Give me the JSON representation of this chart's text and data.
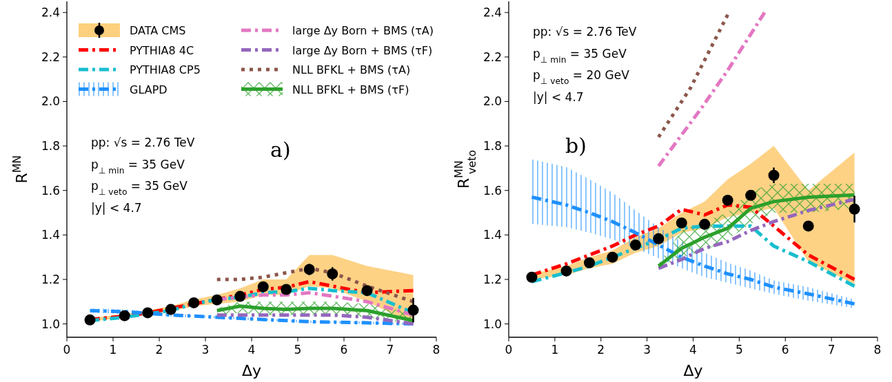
{
  "chart_data": [
    {
      "type": "line",
      "xlabel": "Δy",
      "ylabel": "R$^{MN}$",
      "xlim": [
        0,
        8
      ],
      "ylim": [
        0.94,
        2.45
      ],
      "xticks": [
        0,
        1,
        2,
        3,
        4,
        5,
        6,
        7,
        8
      ],
      "yticks": [
        {
          "value": 1,
          "label": "1.0"
        },
        {
          "value": 1.2,
          "label": "1.2"
        },
        {
          "value": 1.4,
          "label": "1.4"
        },
        {
          "value": 1.6,
          "label": "1.6"
        },
        {
          "value": 1.8,
          "label": "1.8"
        },
        {
          "value": 2,
          "label": "2.0"
        },
        {
          "value": 2.2,
          "label": "2.2"
        },
        {
          "value": 2.4,
          "label": "2.4"
        }
      ],
      "grid": false,
      "legend": "top left",
      "annotations": [
        "pp:  √s = 2.76 TeV",
        "p$_{⊥ min}$ = 35 GeV",
        "p$_{⊥ veto}$ = 35 GeV",
        "|y| < 4.7",
        "a)"
      ],
      "series": [
        {
          "name": "DATA CMS",
          "type": "scatter",
          "marker": "circle",
          "color": "#000000",
          "x": [
            0.5,
            1.25,
            1.75,
            2.25,
            2.75,
            3.25,
            3.75,
            4.25,
            4.75,
            5.25,
            5.75,
            6.5,
            7.5
          ],
          "values": [
            1.018,
            1.037,
            1.05,
            1.065,
            1.095,
            1.108,
            1.124,
            1.167,
            1.155,
            1.245,
            1.225,
            1.15,
            1.062
          ],
          "errors": [
            0.01,
            0.01,
            0.01,
            0.01,
            0.01,
            0.01,
            0.015,
            0.015,
            0.015,
            0.025,
            0.03,
            0.02,
            0.055
          ],
          "lower": [
            1.01,
            1.03,
            1.04,
            1.055,
            1.08,
            1.09,
            1.1,
            1.13,
            1.13,
            1.17,
            1.16,
            1.1,
            1.0
          ],
          "upper": [
            1.025,
            1.045,
            1.06,
            1.08,
            1.11,
            1.13,
            1.16,
            1.2,
            1.2,
            1.31,
            1.31,
            1.26,
            1.22
          ]
        },
        {
          "name": "PYTHIA8 4C",
          "type": "line",
          "line_style": "dashed",
          "color": "#ff0000",
          "x": [
            0.5,
            1.25,
            1.75,
            2.25,
            2.75,
            3.25,
            3.75,
            4.25,
            4.75,
            5.25,
            5.75,
            6.5,
            7.5
          ],
          "values": [
            1.02,
            1.035,
            1.05,
            1.07,
            1.09,
            1.11,
            1.13,
            1.155,
            1.165,
            1.19,
            1.17,
            1.14,
            1.15
          ]
        },
        {
          "name": "PYTHIA8 CP5",
          "type": "line",
          "line_style": "dashed",
          "color": "#17becf",
          "x": [
            0.5,
            1.25,
            1.75,
            2.25,
            2.75,
            3.25,
            3.75,
            4.25,
            4.75,
            5.25,
            5.75,
            6.5,
            7.5
          ],
          "values": [
            1.015,
            1.03,
            1.045,
            1.06,
            1.09,
            1.11,
            1.12,
            1.14,
            1.145,
            1.16,
            1.15,
            1.14,
            1.05
          ]
        },
        {
          "name": "GLAPD",
          "type": "line",
          "line_style": "dashed",
          "color": "#1e90ff",
          "x": [
            0.5,
            1.25,
            1.75,
            2.25,
            2.75,
            3.25,
            3.75,
            4.25,
            4.75,
            5.25,
            5.75,
            6.5,
            7.5
          ],
          "values": [
            1.06,
            1.055,
            1.048,
            1.04,
            1.035,
            1.03,
            1.025,
            1.02,
            1.015,
            1.01,
            1.008,
            1.005,
            1.0
          ],
          "lower": [
            1.05,
            1.045,
            1.04,
            1.033,
            1.03,
            1.025,
            1.02,
            1.015,
            1.01,
            1.005,
            1.003,
            1.0,
            0.995
          ],
          "upper": [
            1.07,
            1.065,
            1.056,
            1.047,
            1.04,
            1.035,
            1.03,
            1.025,
            1.02,
            1.015,
            1.013,
            1.01,
            1.005
          ]
        },
        {
          "name": "large Δy Born + BMS (τA)",
          "type": "line",
          "line_style": "dashed",
          "color": "#e377c2",
          "x": [
            3.25,
            3.75,
            4.25,
            4.75,
            5.25,
            5.75,
            6.5,
            7.5
          ],
          "values": [
            1.11,
            1.12,
            1.13,
            1.13,
            1.14,
            1.125,
            1.1,
            1.04
          ]
        },
        {
          "name": "large Δy Born + BMS (τF)",
          "type": "line",
          "line_style": "dashed",
          "color": "#9467bd",
          "x": [
            3.25,
            3.75,
            4.25,
            4.75,
            5.25,
            5.75,
            6.5,
            7.5
          ],
          "values": [
            1.04,
            1.04,
            1.04,
            1.04,
            1.04,
            1.04,
            1.03,
            1.0
          ]
        },
        {
          "name": "NLL BFKL  +  BMS (τA)",
          "type": "line",
          "line_style": "dotted",
          "color": "#8c564b",
          "x": [
            3.25,
            3.75,
            4.25,
            4.75,
            5.25,
            5.75,
            6.5,
            7.5
          ],
          "values": [
            1.2,
            1.2,
            1.21,
            1.23,
            1.25,
            1.23,
            1.17,
            1.1
          ]
        },
        {
          "name": "NLL BFKL  +  BMS (τF)",
          "type": "line",
          "line_style": "solid",
          "color": "#2ca02c",
          "x": [
            3.25,
            3.75,
            4.25,
            4.75,
            5.25,
            5.75,
            6.5,
            7.5
          ],
          "values": [
            1.06,
            1.08,
            1.07,
            1.065,
            1.07,
            1.07,
            1.06,
            1.015
          ],
          "lower": [
            1.04,
            1.05,
            1.04,
            1.04,
            1.04,
            1.04,
            1.03,
            1.0
          ],
          "upper": [
            1.07,
            1.1,
            1.1,
            1.1,
            1.1,
            1.1,
            1.09,
            1.05
          ]
        }
      ]
    },
    {
      "type": "line",
      "xlabel": "Δy",
      "ylabel": "R$^{MN}$$_{veto}$",
      "xlim": [
        0,
        8
      ],
      "ylim": [
        0.94,
        2.45
      ],
      "xticks": [
        0,
        1,
        2,
        3,
        4,
        5,
        6,
        7,
        8
      ],
      "yticks": [
        {
          "value": 1,
          "label": "1.0"
        },
        {
          "value": 1.2,
          "label": "1.2"
        },
        {
          "value": 1.4,
          "label": "1.4"
        },
        {
          "value": 1.6,
          "label": "1.6"
        },
        {
          "value": 1.8,
          "label": "1.8"
        },
        {
          "value": 2,
          "label": "2.0"
        },
        {
          "value": 2.2,
          "label": "2.2"
        },
        {
          "value": 2.4,
          "label": "2.4"
        }
      ],
      "grid": false,
      "annotations": [
        "pp:  √s = 2.76 TeV",
        "p$_{⊥ min}$ = 35 GeV",
        "p$_{⊥ veto}$ = 20 GeV",
        "|y| < 4.7",
        "b)"
      ],
      "series": [
        {
          "type": "scatter",
          "marker": "circle",
          "color": "#000000",
          "x": [
            0.5,
            1.25,
            1.75,
            2.25,
            2.75,
            3.25,
            3.75,
            4.25,
            4.75,
            5.25,
            5.75,
            6.5,
            7.5
          ],
          "values": [
            1.21,
            1.238,
            1.275,
            1.3,
            1.355,
            1.383,
            1.454,
            1.448,
            1.556,
            1.578,
            1.668,
            1.44,
            1.516
          ],
          "errors": [
            0.01,
            0.01,
            0.01,
            0.01,
            0.01,
            0.015,
            0.015,
            0.015,
            0.015,
            0.02,
            0.035,
            0.02,
            0.06
          ],
          "lower": [
            1.2,
            1.22,
            1.25,
            1.27,
            1.32,
            1.35,
            1.41,
            1.43,
            1.48,
            1.5,
            1.52,
            1.28,
            1.18
          ],
          "upper": [
            1.225,
            1.26,
            1.3,
            1.33,
            1.39,
            1.43,
            1.5,
            1.55,
            1.65,
            1.72,
            1.8,
            1.6,
            1.77
          ]
        },
        {
          "type": "line",
          "line_style": "dashed",
          "color": "#ff0000",
          "x": [
            0.5,
            1.25,
            1.75,
            2.25,
            2.75,
            3.25,
            3.75,
            4.25,
            4.75,
            5.25,
            5.75,
            6.5,
            7.5
          ],
          "values": [
            1.22,
            1.27,
            1.31,
            1.35,
            1.4,
            1.44,
            1.515,
            1.49,
            1.535,
            1.525,
            1.44,
            1.31,
            1.2
          ]
        },
        {
          "type": "line",
          "line_style": "dashed",
          "color": "#17becf",
          "x": [
            0.5,
            1.25,
            1.75,
            2.25,
            2.75,
            3.25,
            3.75,
            4.25,
            4.75,
            5.25,
            5.75,
            6.5,
            7.5
          ],
          "values": [
            1.19,
            1.23,
            1.26,
            1.3,
            1.34,
            1.38,
            1.43,
            1.44,
            1.44,
            1.44,
            1.35,
            1.28,
            1.17
          ]
        },
        {
          "type": "line",
          "line_style": "dashed",
          "color": "#1e90ff",
          "x": [
            0.5,
            1.25,
            1.75,
            2.25,
            2.75,
            3.25,
            3.75,
            4.25,
            4.75,
            5.25,
            5.75,
            6.5,
            7.5
          ],
          "values": [
            1.57,
            1.535,
            1.5,
            1.46,
            1.41,
            1.355,
            1.3,
            1.26,
            1.225,
            1.2,
            1.165,
            1.135,
            1.09
          ],
          "lower": [
            1.45,
            1.435,
            1.41,
            1.38,
            1.34,
            1.295,
            1.25,
            1.21,
            1.185,
            1.16,
            1.135,
            1.105,
            1.07
          ],
          "upper": [
            1.74,
            1.705,
            1.65,
            1.59,
            1.51,
            1.435,
            1.37,
            1.32,
            1.275,
            1.24,
            1.195,
            1.165,
            1.11
          ]
        },
        {
          "type": "line",
          "line_style": "dashed",
          "color": "#e377c2",
          "x": [
            3.25,
            4.18,
            4.75,
            5.55
          ],
          "values": [
            1.71,
            1.97,
            2.14,
            2.4
          ]
        },
        {
          "type": "line",
          "line_style": "dashed",
          "color": "#9467bd",
          "x": [
            3.25,
            3.75,
            4.25,
            4.75,
            5.25,
            5.75,
            6.5,
            7.5
          ],
          "values": [
            1.25,
            1.29,
            1.34,
            1.37,
            1.42,
            1.46,
            1.51,
            1.56
          ]
        },
        {
          "type": "line",
          "line_style": "dotted",
          "color": "#8c564b",
          "x": [
            3.25,
            3.94,
            4.75
          ],
          "values": [
            1.84,
            2.06,
            2.39
          ]
        },
        {
          "type": "line",
          "line_style": "solid",
          "color": "#2ca02c",
          "x": [
            3.25,
            3.75,
            4.25,
            4.75,
            5.25,
            5.75,
            6.5,
            7.5
          ],
          "values": [
            1.26,
            1.34,
            1.39,
            1.43,
            1.52,
            1.55,
            1.57,
            1.58
          ],
          "lower": [
            1.25,
            1.3,
            1.33,
            1.38,
            1.45,
            1.5,
            1.5,
            1.52
          ],
          "upper": [
            1.27,
            1.42,
            1.46,
            1.5,
            1.6,
            1.63,
            1.63,
            1.63
          ]
        }
      ]
    }
  ]
}
